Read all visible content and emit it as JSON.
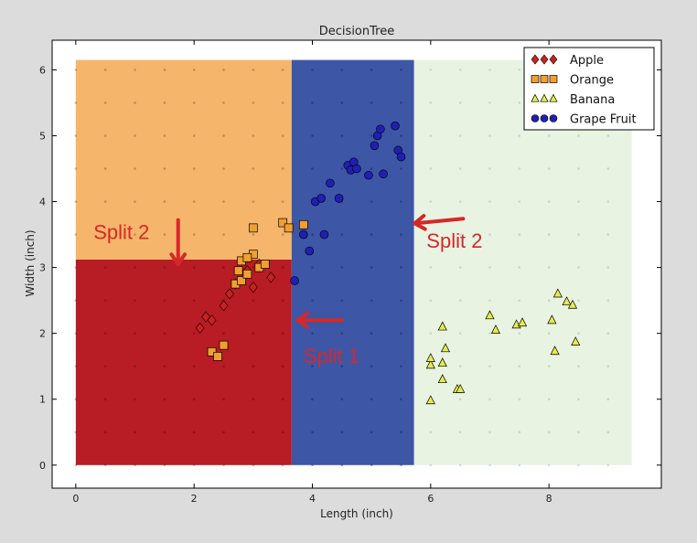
{
  "chart_data": {
    "type": "scatter",
    "title": "DecisionTree",
    "xlabel": "Length (inch)",
    "ylabel": "Width (inch)",
    "xlim": [
      -0.4,
      9.9
    ],
    "ylim": [
      -0.35,
      6.45
    ],
    "xticks": [
      0,
      2,
      4,
      6,
      8
    ],
    "yticks": [
      0,
      1,
      2,
      3,
      4,
      5,
      6
    ],
    "legend_position": "top-right",
    "grid": false,
    "regions": [
      {
        "class": "Apple",
        "x": [
          0,
          3.65
        ],
        "y": [
          0,
          3.12
        ],
        "color": "#b81c24"
      },
      {
        "class": "Orange",
        "x": [
          0,
          3.65
        ],
        "y": [
          3.12,
          6.15
        ],
        "color": "#f5b56b"
      },
      {
        "class": "Grape Fruit",
        "x": [
          3.65,
          5.72
        ],
        "y": [
          0,
          6.15
        ],
        "color": "#3e56a6"
      },
      {
        "class": "Banana",
        "x": [
          5.72,
          9.4
        ],
        "y": [
          0,
          6.15
        ],
        "color": "#e8f3e2"
      }
    ],
    "series": [
      {
        "name": "Apple",
        "marker": "diamond",
        "color": "#cc1f1f",
        "points": [
          [
            2.1,
            2.08
          ],
          [
            2.2,
            2.25
          ],
          [
            2.3,
            2.2
          ],
          [
            2.5,
            2.42
          ],
          [
            2.6,
            2.6
          ],
          [
            2.7,
            2.75
          ],
          [
            2.9,
            2.95
          ],
          [
            3.0,
            2.7
          ],
          [
            3.1,
            3.05
          ],
          [
            3.3,
            2.85
          ]
        ]
      },
      {
        "name": "Orange",
        "marker": "square",
        "color": "#f0a030",
        "points": [
          [
            2.3,
            1.72
          ],
          [
            2.4,
            1.65
          ],
          [
            2.5,
            1.82
          ],
          [
            2.7,
            2.75
          ],
          [
            2.8,
            2.8
          ],
          [
            2.8,
            3.1
          ],
          [
            2.9,
            2.9
          ],
          [
            3.0,
            3.2
          ],
          [
            3.0,
            3.6
          ],
          [
            3.1,
            3.0
          ],
          [
            3.2,
            3.05
          ],
          [
            3.5,
            3.68
          ],
          [
            3.6,
            3.6
          ],
          [
            3.85,
            3.65
          ],
          [
            2.75,
            2.95
          ],
          [
            2.9,
            3.15
          ]
        ]
      },
      {
        "name": "Banana",
        "marker": "triangle",
        "color": "#e4ec4c",
        "points": [
          [
            6.0,
            0.98
          ],
          [
            6.0,
            1.52
          ],
          [
            6.0,
            1.62
          ],
          [
            6.2,
            1.3
          ],
          [
            6.2,
            1.55
          ],
          [
            6.2,
            2.1
          ],
          [
            6.25,
            1.77
          ],
          [
            6.45,
            1.15
          ],
          [
            6.5,
            1.15
          ],
          [
            7.0,
            2.27
          ],
          [
            7.1,
            2.05
          ],
          [
            7.45,
            2.13
          ],
          [
            7.55,
            2.16
          ],
          [
            8.05,
            2.2
          ],
          [
            8.1,
            1.73
          ],
          [
            8.15,
            2.6
          ],
          [
            8.3,
            2.48
          ],
          [
            8.4,
            2.43
          ],
          [
            8.45,
            1.87
          ]
        ]
      },
      {
        "name": "Grape Fruit",
        "marker": "circle",
        "color": "#1f1fb4",
        "points": [
          [
            3.7,
            2.8
          ],
          [
            3.85,
            3.5
          ],
          [
            3.95,
            3.25
          ],
          [
            4.05,
            4.0
          ],
          [
            4.15,
            4.05
          ],
          [
            4.2,
            3.5
          ],
          [
            4.3,
            4.28
          ],
          [
            4.45,
            4.05
          ],
          [
            4.6,
            4.55
          ],
          [
            4.65,
            4.48
          ],
          [
            4.7,
            4.6
          ],
          [
            4.75,
            4.5
          ],
          [
            4.95,
            4.4
          ],
          [
            5.05,
            4.85
          ],
          [
            5.1,
            5.0
          ],
          [
            5.15,
            5.1
          ],
          [
            5.2,
            4.42
          ],
          [
            5.4,
            5.15
          ],
          [
            5.45,
            4.78
          ],
          [
            5.5,
            4.68
          ]
        ]
      }
    ],
    "annotations": [
      {
        "text": "Split 2",
        "label_x": 0.3,
        "label_y": 3.43,
        "arrow_from": [
          1.73,
          3.72
        ],
        "arrow_to": [
          1.73,
          3.05
        ]
      },
      {
        "text": "Split 2",
        "label_x": 5.93,
        "label_y": 3.3,
        "arrow_from": [
          6.55,
          3.74
        ],
        "arrow_to": [
          5.73,
          3.67
        ]
      },
      {
        "text": "Split 1",
        "label_x": 3.85,
        "label_y": 1.55,
        "arrow_from": [
          4.5,
          2.2
        ],
        "arrow_to": [
          3.75,
          2.2
        ]
      }
    ]
  },
  "icons": {
    "arrow": "red-arrow-icon"
  }
}
